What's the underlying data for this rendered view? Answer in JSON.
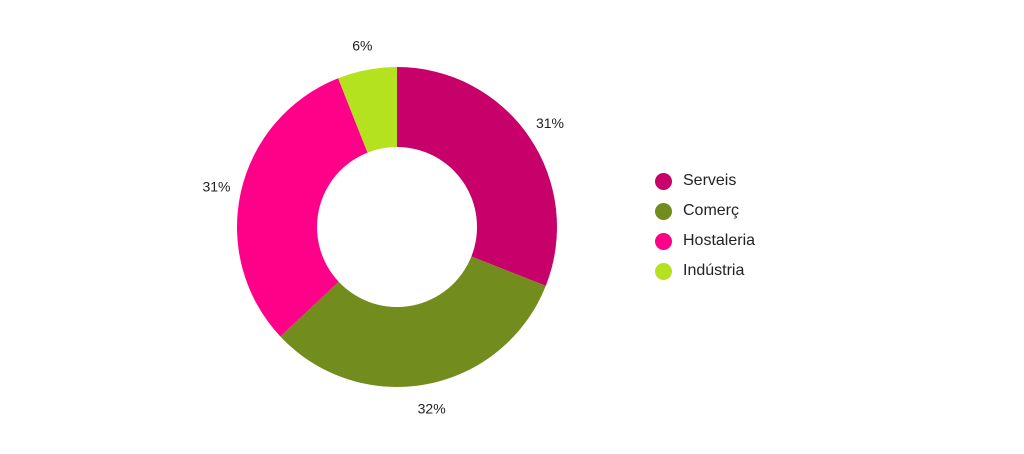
{
  "chart_data": {
    "type": "pie",
    "donut": true,
    "categories": [
      "Serveis",
      "Comerç",
      "Hostaleria",
      "Indústria"
    ],
    "values": [
      31,
      32,
      31,
      6
    ],
    "labels": [
      "31%",
      "32%",
      "31%",
      "6%"
    ],
    "colors": [
      "#c8006a",
      "#738c1e",
      "#ff0088",
      "#b5e21e"
    ],
    "legend_position": "right",
    "title": ""
  }
}
